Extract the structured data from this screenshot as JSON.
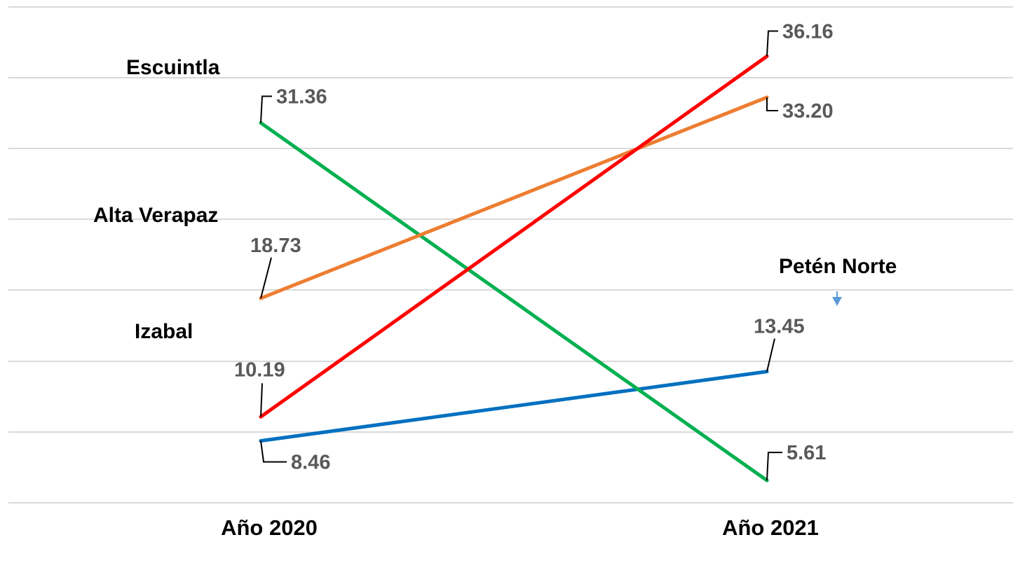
{
  "chart_data": {
    "type": "line",
    "categories": [
      "Año 2020",
      "Año 2021"
    ],
    "ylim": [
      4,
      39
    ],
    "grid": true,
    "series": [
      {
        "name": "Escuintla",
        "values": [
          10.19,
          36.16
        ],
        "color": "#ff0000"
      },
      {
        "name": "Alta Verapaz",
        "values": [
          18.73,
          33.2
        ],
        "color": "#ed7d31"
      },
      {
        "name": "Izabal",
        "values": [
          31.36,
          5.61
        ],
        "color": "#00b050"
      },
      {
        "name": "Petén Norte",
        "values": [
          8.46,
          13.45
        ],
        "color": "#0070c0"
      }
    ],
    "data_labels": [
      [
        "10.19",
        "36.16"
      ],
      [
        "18.73",
        "33.20"
      ],
      [
        "31.36",
        "5.61"
      ],
      [
        "8.46",
        "13.45"
      ]
    ],
    "legend_placement": "inline-labels",
    "marker_color": "#5b9bd5"
  }
}
